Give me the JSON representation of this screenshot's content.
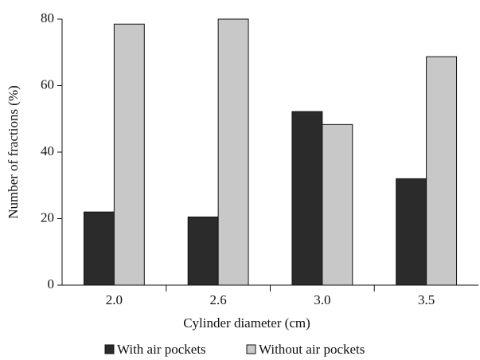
{
  "chart_data": {
    "type": "bar",
    "xlabel": "Cylinder diameter (cm)",
    "ylabel": "Number of fractions (%)",
    "categories": [
      "2.0",
      "2.6",
      "3.0",
      "3.5"
    ],
    "series": [
      {
        "name": "With air pockets",
        "color": "#2b2b2b",
        "values": [
          22,
          20.5,
          52.2,
          32
        ]
      },
      {
        "name": "Without air pockets",
        "color": "#c8c8c8",
        "values": [
          78.5,
          80,
          48.3,
          68.7
        ]
      }
    ],
    "ylim": [
      0,
      80
    ],
    "yticks": [
      0,
      20,
      40,
      60,
      80
    ],
    "grid": false,
    "legend": "bottom"
  }
}
